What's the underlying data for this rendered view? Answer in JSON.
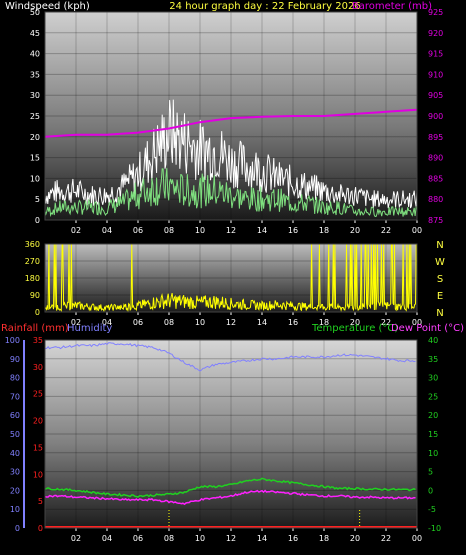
{
  "header": {
    "left_title": "Windspeed (kph)",
    "center_title": "24 hour graph day : 22 February 2026",
    "right_title": "Barometer (mb)"
  },
  "colors": {
    "wind_gust": "#ffffff",
    "wind_avg": "#7fe07f",
    "barometer": "#e000e0",
    "direction": "#ffff00",
    "rainfall": "#ff2020",
    "humidity": "#8080ff",
    "temperature": "#20d020",
    "dewpoint": "#ff20ff",
    "title_yellow": "#ffff40",
    "axis_white": "#ffffff"
  },
  "chart_data": [
    {
      "type": "line",
      "panel": "wind_barometer",
      "title": "24 hour graph day : 22 February 2026",
      "x_ticks": [
        "02",
        "04",
        "06",
        "08",
        "10",
        "12",
        "14",
        "16",
        "18",
        "20",
        "22",
        "00"
      ],
      "left_axis": {
        "label": "Windspeed (kph)",
        "range": [
          0,
          50
        ],
        "ticks": [
          0,
          5,
          10,
          15,
          20,
          25,
          30,
          35,
          40,
          45,
          50
        ]
      },
      "right_axis": {
        "label": "Barometer (mb)",
        "range": [
          875,
          925
        ],
        "ticks": [
          875,
          880,
          885,
          890,
          895,
          900,
          905,
          910,
          915,
          920,
          925
        ]
      },
      "x_range_hours": [
        0,
        24
      ],
      "series": [
        {
          "key": "gust",
          "axis": "left",
          "x": [
            0,
            1,
            2,
            3,
            4,
            5,
            6,
            7,
            8,
            9,
            10,
            11,
            12,
            13,
            14,
            15,
            16,
            17,
            18,
            19,
            20,
            21,
            22,
            23,
            24
          ],
          "values": [
            6,
            7,
            7,
            6,
            6,
            8,
            11,
            16,
            21,
            19,
            17,
            17,
            14,
            13,
            12,
            10,
            9,
            8,
            7,
            6,
            6,
            5,
            5,
            5,
            5
          ]
        },
        {
          "key": "average",
          "axis": "left",
          "x": [
            0,
            1,
            2,
            3,
            4,
            5,
            6,
            7,
            8,
            9,
            10,
            11,
            12,
            13,
            14,
            15,
            16,
            17,
            18,
            19,
            20,
            21,
            22,
            23,
            24
          ],
          "values": [
            2,
            3,
            3,
            3,
            3,
            4,
            6,
            8,
            8,
            7,
            7,
            7,
            6,
            5,
            5,
            5,
            4,
            4,
            3,
            3,
            2,
            2,
            2,
            2,
            2
          ]
        },
        {
          "key": "barometer",
          "axis": "right",
          "x": [
            0,
            2,
            4,
            6,
            8,
            10,
            12,
            14,
            16,
            18,
            20,
            22,
            24
          ],
          "values": [
            895,
            895.5,
            895.5,
            896,
            897,
            898.5,
            899.5,
            899.8,
            900,
            900,
            900.5,
            901,
            901.5
          ]
        }
      ]
    },
    {
      "type": "line",
      "panel": "wind_direction",
      "left_axis": {
        "range": [
          0,
          360
        ],
        "ticks": [
          0,
          90,
          180,
          270,
          360
        ]
      },
      "right_labels": [
        "N",
        "W",
        "S",
        "E",
        "N"
      ],
      "x_ticks": [
        "02",
        "04",
        "06",
        "08",
        "10",
        "12",
        "14",
        "16",
        "18",
        "20",
        "22",
        "00"
      ],
      "series": [
        {
          "key": "direction",
          "x": [
            0,
            1,
            2,
            3,
            4,
            5,
            6,
            7,
            8,
            9,
            10,
            11,
            12,
            13,
            14,
            15,
            16,
            17,
            18,
            19,
            20,
            21,
            22,
            23,
            24
          ],
          "values": [
            20,
            25,
            30,
            25,
            20,
            25,
            30,
            45,
            55,
            50,
            45,
            50,
            40,
            35,
            30,
            35,
            30,
            25,
            25,
            20,
            25,
            30,
            30,
            25,
            25
          ]
        }
      ]
    },
    {
      "type": "line",
      "panel": "rain_humidity_temperature",
      "x_ticks": [
        "02",
        "04",
        "06",
        "08",
        "10",
        "12",
        "14",
        "16",
        "18",
        "20",
        "22",
        "00"
      ],
      "left_axis": {
        "label": "Rainfall (mm)",
        "range": [
          0,
          35
        ],
        "ticks": [
          0,
          5,
          10,
          15,
          20,
          25,
          30,
          35
        ]
      },
      "humidity_axis": {
        "label": "Humidity",
        "range": [
          0,
          100
        ],
        "ticks": [
          0,
          10,
          20,
          30,
          40,
          50,
          60,
          70,
          80,
          90,
          100
        ]
      },
      "right_axis": {
        "label": "Temperature (°C)",
        "label2": "Dew Point (°C)",
        "range": [
          -10,
          40
        ],
        "ticks": [
          -10,
          -5,
          0,
          5,
          10,
          15,
          20,
          25,
          30,
          35,
          40
        ]
      },
      "series": [
        {
          "key": "rainfall",
          "axis": "left",
          "x": [
            0,
            24
          ],
          "values": [
            0,
            0
          ]
        },
        {
          "key": "humidity",
          "axis": "humidity",
          "x": [
            0,
            1,
            2,
            3,
            4,
            5,
            6,
            7,
            8,
            9,
            10,
            11,
            12,
            13,
            14,
            15,
            16,
            17,
            18,
            19,
            20,
            21,
            22,
            23,
            24
          ],
          "values": [
            96,
            96,
            97,
            97,
            98,
            98,
            97,
            96,
            93,
            88,
            84,
            87,
            88,
            89,
            90,
            90,
            91,
            91,
            91,
            92,
            92,
            91,
            90,
            89,
            89
          ]
        },
        {
          "key": "temperature",
          "axis": "right",
          "x": [
            0,
            1,
            2,
            3,
            4,
            5,
            6,
            7,
            8,
            9,
            10,
            11,
            12,
            13,
            14,
            15,
            16,
            17,
            18,
            19,
            20,
            21,
            22,
            23,
            24
          ],
          "values": [
            0.5,
            0.3,
            0,
            -0.5,
            -1,
            -1.2,
            -1.5,
            -1.3,
            -1,
            -0.5,
            1,
            1,
            1.5,
            2.5,
            3,
            2.5,
            2,
            1.5,
            1,
            0.5,
            0.5,
            0.3,
            0.3,
            0.2,
            0.2
          ]
        },
        {
          "key": "dewpoint",
          "axis": "right",
          "x": [
            0,
            1,
            2,
            3,
            4,
            5,
            6,
            7,
            8,
            9,
            10,
            11,
            12,
            13,
            14,
            15,
            16,
            17,
            18,
            19,
            20,
            21,
            22,
            23,
            24
          ],
          "values": [
            -1.5,
            -1.5,
            -1.8,
            -2,
            -2.2,
            -2.5,
            -2.5,
            -2.5,
            -3,
            -3.5,
            -2.5,
            -2,
            -1.5,
            -0.5,
            -0.2,
            -0.5,
            -0.8,
            -1.2,
            -1.5,
            -1.5,
            -1.8,
            -1.8,
            -2,
            -2,
            -2
          ]
        }
      ]
    }
  ],
  "panel3_labels": {
    "rainfall": "Rainfall (mm)",
    "humidity": "Humidity",
    "temperature": "Temperature (°C)",
    "dewpoint": "Dew Point (°C)"
  }
}
